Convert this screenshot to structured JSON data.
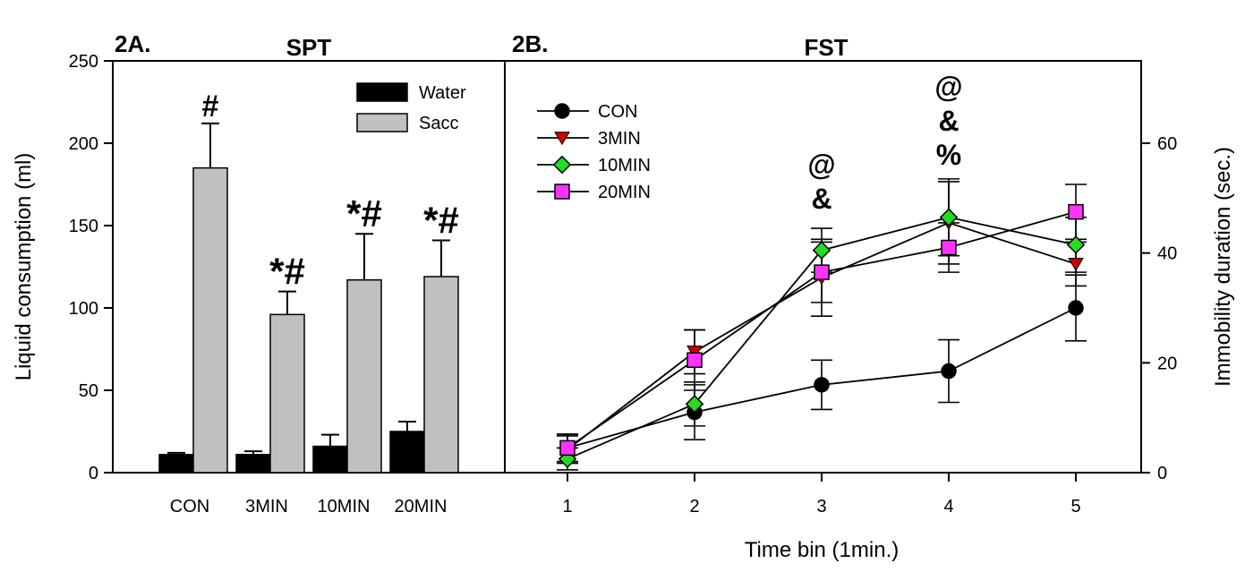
{
  "chart_data": [
    {
      "panel_label": "2A.",
      "title": "SPT",
      "type": "bar",
      "ylabel": "Liquid consumption (ml)",
      "xlabel": "",
      "ylim": [
        0,
        250
      ],
      "yticks": [
        "0",
        "50",
        "100",
        "150",
        "200",
        "250"
      ],
      "categories": [
        "CON",
        "3MIN",
        "10MIN",
        "20MIN"
      ],
      "series": [
        {
          "name": "Water",
          "color": "#000000",
          "values": [
            11,
            11,
            16,
            25
          ],
          "errors": [
            1,
            2,
            7,
            6
          ]
        },
        {
          "name": "Sacc",
          "color": "#c0c0c0",
          "values": [
            185,
            96,
            117,
            119
          ],
          "errors": [
            27,
            14,
            28,
            22
          ]
        }
      ],
      "annotations": [
        "#",
        "*#",
        "*#",
        "*#"
      ]
    },
    {
      "panel_label": "2B.",
      "title": "FST",
      "type": "line",
      "xlabel": "Time bin (1min.)",
      "ylabel": "Immobility duration (sec.)",
      "x": [
        1,
        2,
        3,
        4,
        5
      ],
      "xticks": [
        "1",
        "2",
        "3",
        "4",
        "5"
      ],
      "ylim": [
        0,
        75
      ],
      "yticks": [
        "0",
        "20",
        "40",
        "60"
      ],
      "series": [
        {
          "name": "CON",
          "marker": "circle",
          "color": "#000000",
          "values": [
            4.5,
            11,
            16,
            18.5,
            30
          ],
          "errors": [
            2.5,
            5,
            4.5,
            5.7,
            6
          ]
        },
        {
          "name": "3MIN",
          "marker": "triangle-down",
          "color": "#cc0000",
          "values": [
            4.2,
            22,
            35.5,
            45.5,
            38
          ],
          "errors": [
            2.5,
            4,
            7,
            7.5,
            4
          ]
        },
        {
          "name": "10MIN",
          "marker": "diamond",
          "color": "#22dd22",
          "values": [
            2.5,
            12.5,
            40.5,
            46.5,
            41.5
          ],
          "errors": [
            2,
            4,
            4,
            7,
            5
          ]
        },
        {
          "name": "20MIN",
          "marker": "square",
          "color": "#ff33ff",
          "values": [
            4.5,
            20.5,
            36.5,
            41,
            47.5
          ],
          "errors": [
            2.5,
            5.5,
            5.5,
            4.5,
            5
          ]
        }
      ],
      "annotations": [
        {
          "x": 3,
          "lines": [
            "@",
            "&"
          ]
        },
        {
          "x": 4,
          "lines": [
            "@",
            "&",
            "%"
          ]
        }
      ]
    }
  ]
}
